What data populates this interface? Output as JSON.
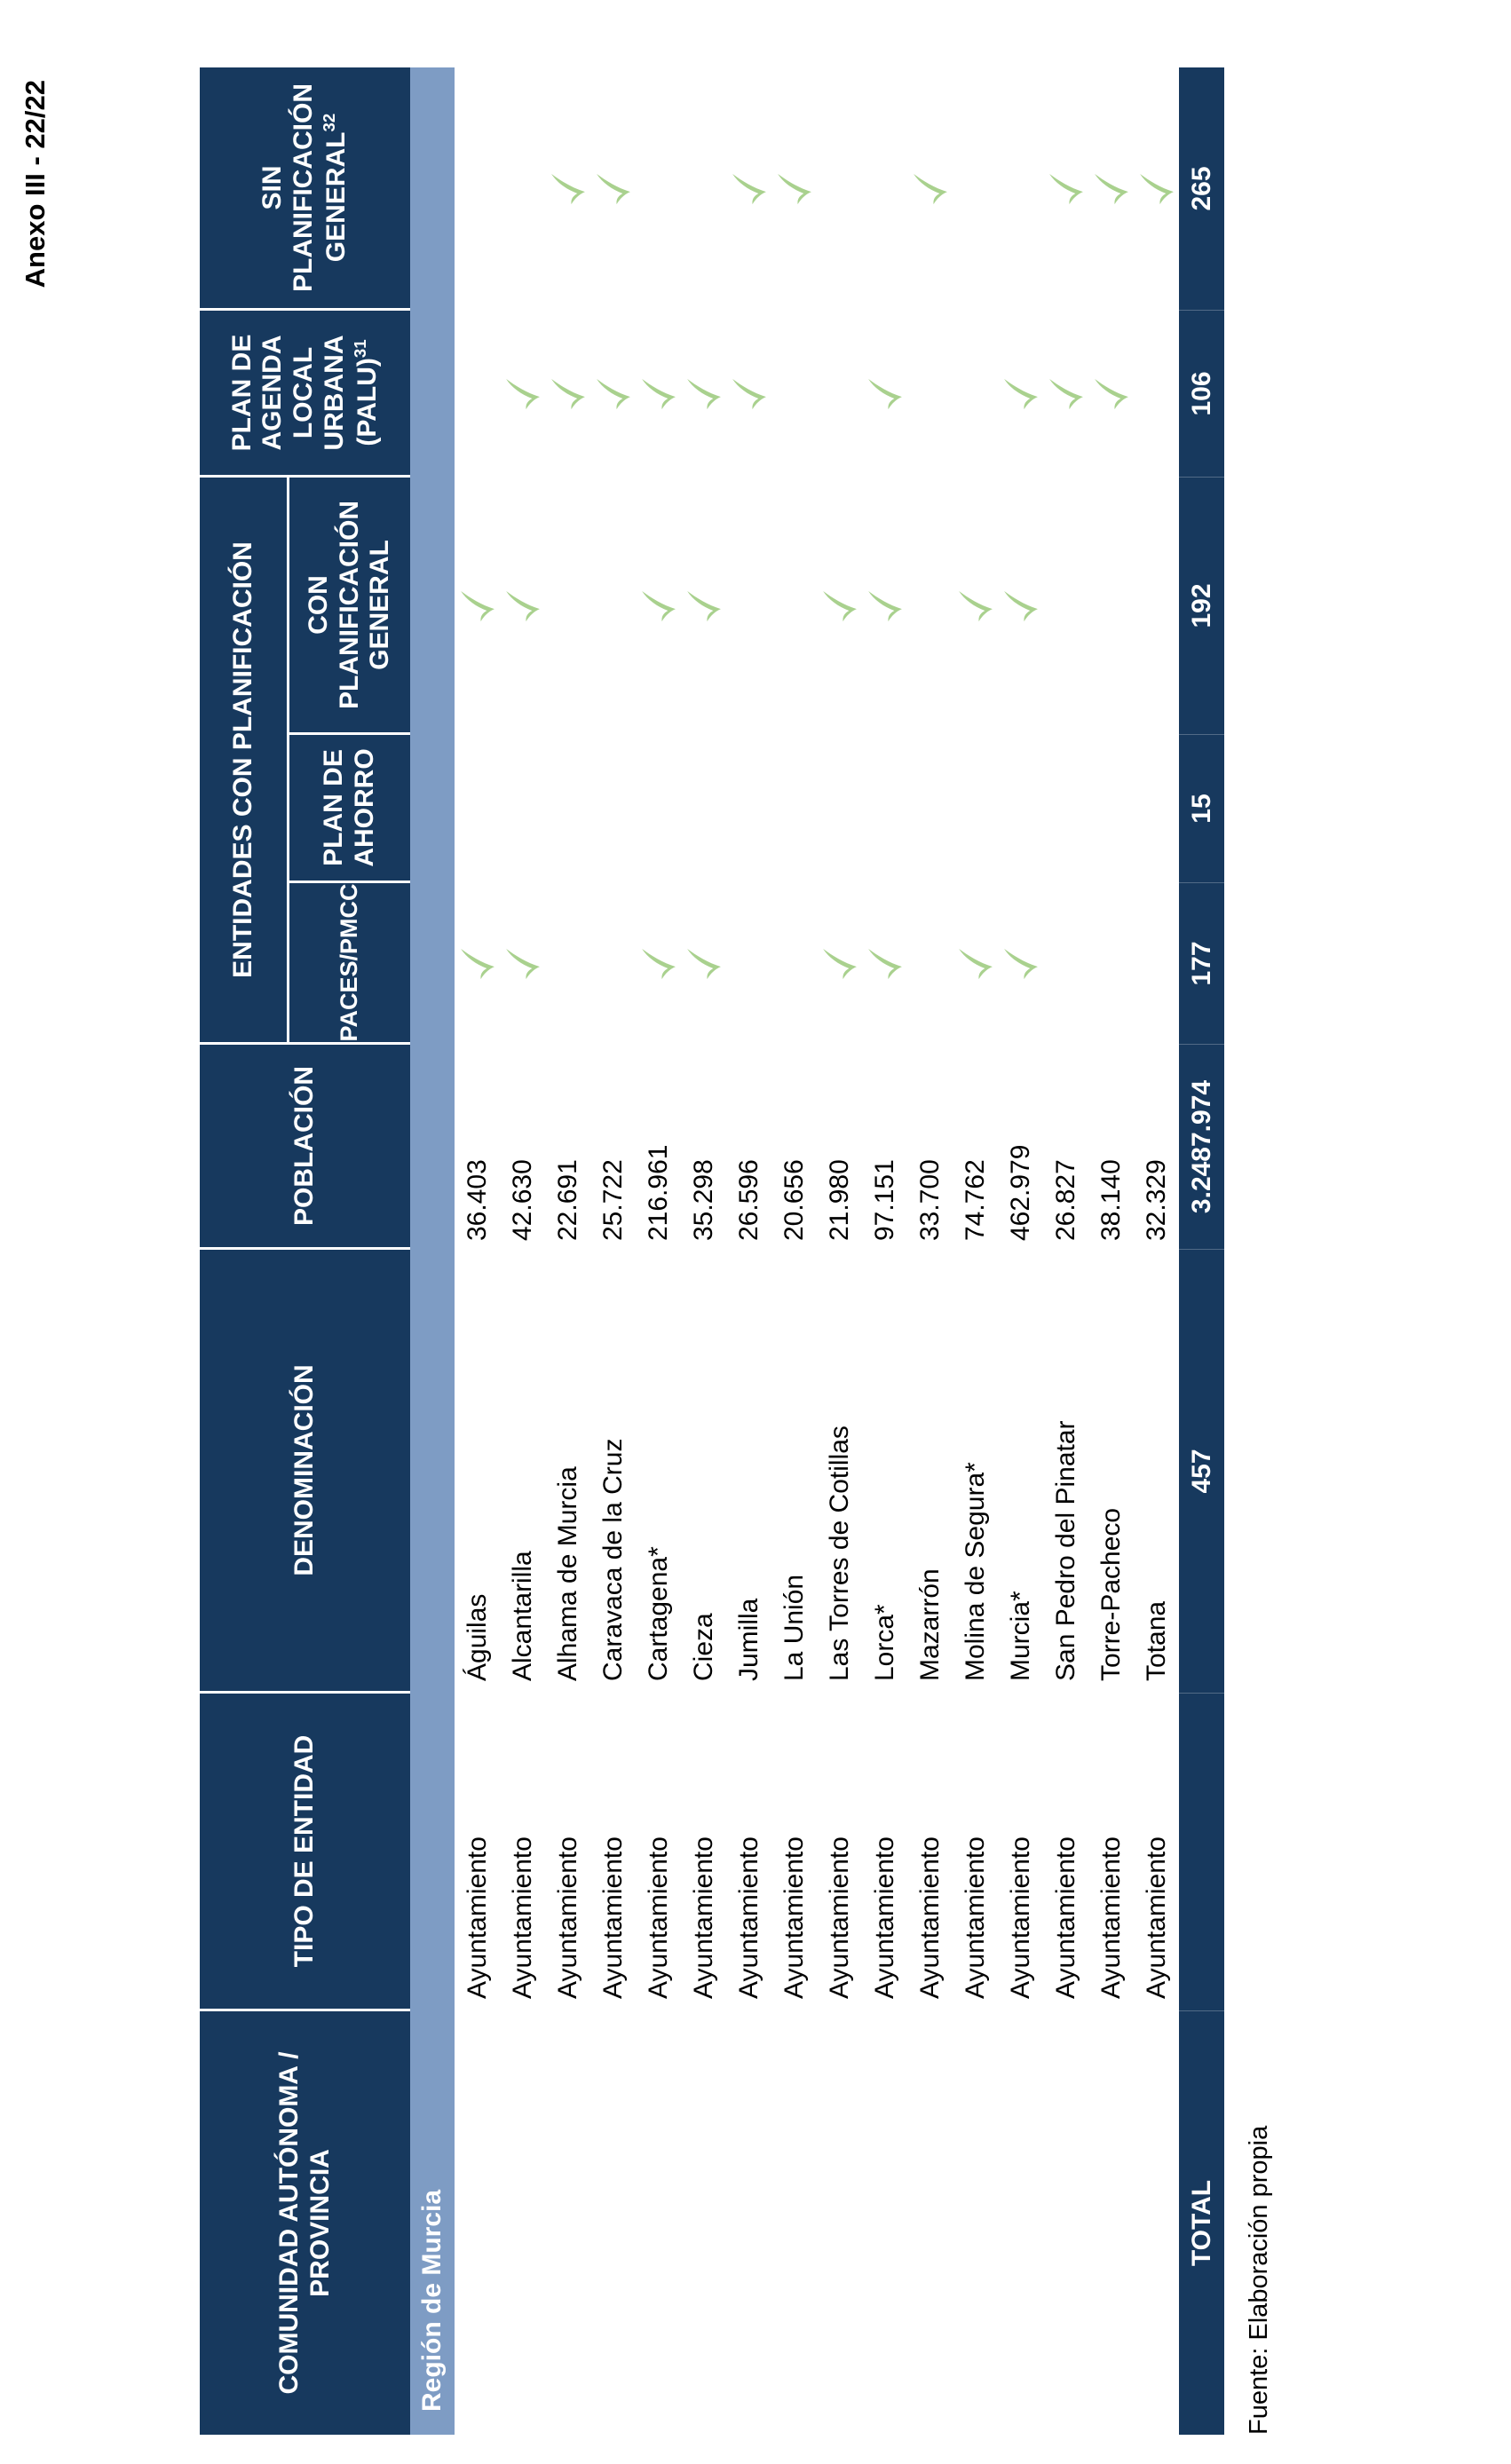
{
  "page": {
    "annex_label": "Anexo III - 22/22",
    "source_note": "Fuente: Elaboración propia"
  },
  "colors": {
    "header_navy": "#17395E",
    "region_blue": "#7E9CC4",
    "check_green": "#A9D18E"
  },
  "icons": {
    "check": "✓"
  },
  "table": {
    "headers": {
      "comunidad": "COMUNIDAD AUTÓNOMA / PROVINCIA",
      "tipo": "TIPO DE ENTIDAD",
      "denominacion": "DENOMINACIÓN",
      "poblacion": "POBLACIÓN",
      "group_planificacion": "ENTIDADES CON PLANIFICACIÓN",
      "paces": "PACES/PMCC",
      "ahorro": "PLAN DE AHORRO",
      "con_general": "CON PLANIFICACIÓN GENERAL",
      "palu": "PLAN DE AGENDA LOCAL URBANA (PALU)",
      "palu_sup": "31",
      "sin_general": "SIN PLANIFICACIÓN GENERAL",
      "sin_sup": "32"
    },
    "region_label": "Región de Murcia",
    "rows": [
      {
        "tipo": "Ayuntamiento",
        "denominacion": "Águilas",
        "poblacion": "36.403",
        "paces": true,
        "ahorro": false,
        "con_general": true,
        "palu": false,
        "sin_general": false
      },
      {
        "tipo": "Ayuntamiento",
        "denominacion": "Alcantarilla",
        "poblacion": "42.630",
        "paces": true,
        "ahorro": false,
        "con_general": true,
        "palu": true,
        "sin_general": false
      },
      {
        "tipo": "Ayuntamiento",
        "denominacion": "Alhama de Murcia",
        "poblacion": "22.691",
        "paces": false,
        "ahorro": false,
        "con_general": false,
        "palu": true,
        "sin_general": true
      },
      {
        "tipo": "Ayuntamiento",
        "denominacion": "Caravaca de la Cruz",
        "poblacion": "25.722",
        "paces": false,
        "ahorro": false,
        "con_general": false,
        "palu": true,
        "sin_general": true
      },
      {
        "tipo": "Ayuntamiento",
        "denominacion": "Cartagena*",
        "poblacion": "216.961",
        "paces": true,
        "ahorro": false,
        "con_general": true,
        "palu": true,
        "sin_general": false
      },
      {
        "tipo": "Ayuntamiento",
        "denominacion": "Cieza",
        "poblacion": "35.298",
        "paces": true,
        "ahorro": false,
        "con_general": true,
        "palu": true,
        "sin_general": false
      },
      {
        "tipo": "Ayuntamiento",
        "denominacion": "Jumilla",
        "poblacion": "26.596",
        "paces": false,
        "ahorro": false,
        "con_general": false,
        "palu": true,
        "sin_general": true
      },
      {
        "tipo": "Ayuntamiento",
        "denominacion": "La Unión",
        "poblacion": "20.656",
        "paces": false,
        "ahorro": false,
        "con_general": false,
        "palu": false,
        "sin_general": true
      },
      {
        "tipo": "Ayuntamiento",
        "denominacion": "Las Torres de Cotillas",
        "poblacion": "21.980",
        "paces": true,
        "ahorro": false,
        "con_general": true,
        "palu": false,
        "sin_general": false
      },
      {
        "tipo": "Ayuntamiento",
        "denominacion": "Lorca*",
        "poblacion": "97.151",
        "paces": true,
        "ahorro": false,
        "con_general": true,
        "palu": true,
        "sin_general": false
      },
      {
        "tipo": "Ayuntamiento",
        "denominacion": "Mazarrón",
        "poblacion": "33.700",
        "paces": false,
        "ahorro": false,
        "con_general": false,
        "palu": false,
        "sin_general": true
      },
      {
        "tipo": "Ayuntamiento",
        "denominacion": "Molina de Segura*",
        "poblacion": "74.762",
        "paces": true,
        "ahorro": false,
        "con_general": true,
        "palu": false,
        "sin_general": false
      },
      {
        "tipo": "Ayuntamiento",
        "denominacion": "Murcia*",
        "poblacion": "462.979",
        "paces": true,
        "ahorro": false,
        "con_general": true,
        "palu": true,
        "sin_general": false
      },
      {
        "tipo": "Ayuntamiento",
        "denominacion": "San Pedro del Pinatar",
        "poblacion": "26.827",
        "paces": false,
        "ahorro": false,
        "con_general": false,
        "palu": true,
        "sin_general": true
      },
      {
        "tipo": "Ayuntamiento",
        "denominacion": "Torre-Pacheco",
        "poblacion": "38.140",
        "paces": false,
        "ahorro": false,
        "con_general": false,
        "palu": true,
        "sin_general": true
      },
      {
        "tipo": "Ayuntamiento",
        "denominacion": "Totana",
        "poblacion": "32.329",
        "paces": false,
        "ahorro": false,
        "con_general": false,
        "palu": false,
        "sin_general": true
      }
    ],
    "total": {
      "label": "TOTAL",
      "denominacion": "457",
      "poblacion": "3.2487.974",
      "paces": "177",
      "ahorro": "15",
      "con_general": "192",
      "palu": "106",
      "sin_general": "265"
    }
  }
}
